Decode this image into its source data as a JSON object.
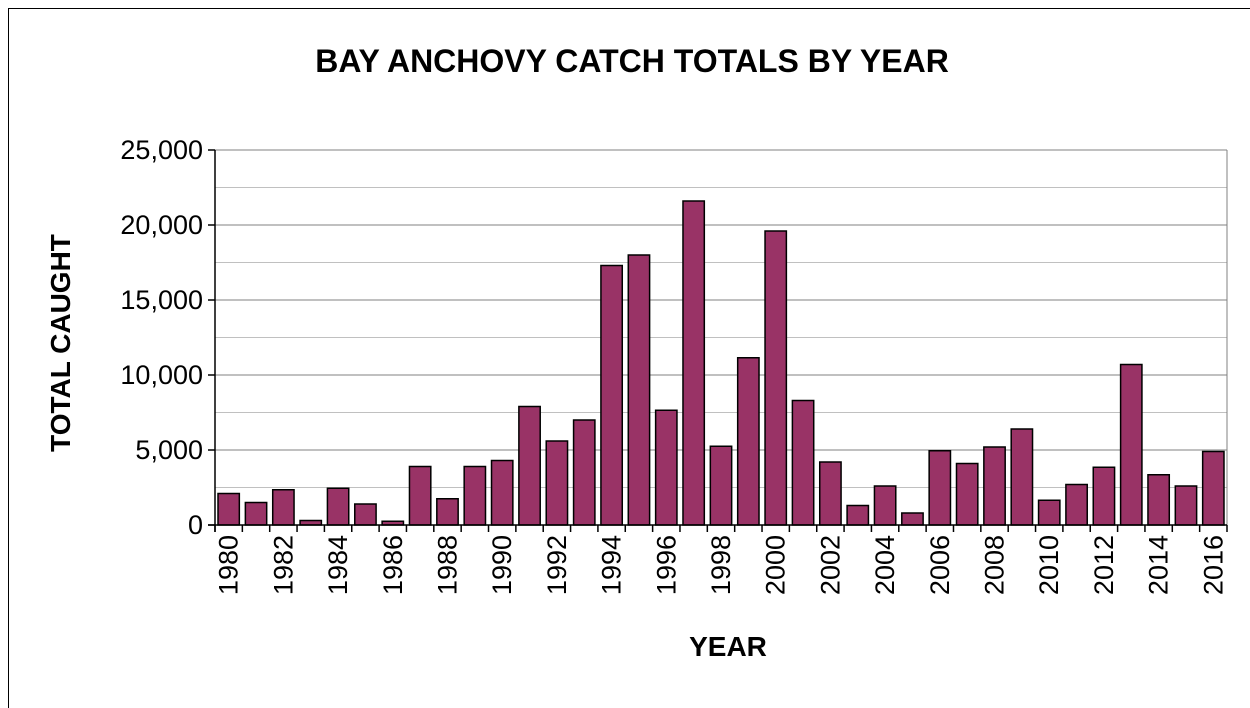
{
  "colors": {
    "bar": "#993366",
    "bar_stroke": "#000000",
    "grid": "#808080",
    "minor_grid": "#c0c0c0"
  },
  "chart_data": {
    "type": "bar",
    "title": "BAY ANCHOVY CATCH TOTALS BY YEAR",
    "xlabel": "YEAR",
    "ylabel": "TOTAL CAUGHT",
    "ylim": [
      0,
      25000
    ],
    "y_ticks": [
      "0",
      "5,000",
      "10,000",
      "15,000",
      "20,000",
      "25,000"
    ],
    "y_tick_values": [
      0,
      5000,
      10000,
      15000,
      20000,
      25000
    ],
    "grid": true,
    "legend": "none",
    "categories": [
      "1980",
      "1981",
      "1982",
      "1983",
      "1984",
      "1985",
      "1986",
      "1987",
      "1988",
      "1989",
      "1990",
      "1991",
      "1992",
      "1993",
      "1994",
      "1995",
      "1996",
      "1997",
      "1998",
      "1999",
      "2000",
      "2001",
      "2002",
      "2003",
      "2004",
      "2005",
      "2006",
      "2007",
      "2008",
      "2009",
      "2010",
      "2011",
      "2012",
      "2013",
      "2014",
      "2015",
      "2016"
    ],
    "x_tick_labels": [
      "1980",
      "",
      "1982",
      "",
      "1984",
      "",
      "1986",
      "",
      "1988",
      "",
      "1990",
      "",
      "1992",
      "",
      "1994",
      "",
      "1996",
      "",
      "1998",
      "",
      "2000",
      "",
      "2002",
      "",
      "2004",
      "",
      "2006",
      "",
      "2008",
      "",
      "2010",
      "",
      "2012",
      "",
      "2014",
      "",
      "2016"
    ],
    "values": [
      2100,
      1500,
      2350,
      300,
      2450,
      1400,
      250,
      3900,
      1750,
      3900,
      4300,
      7900,
      5600,
      7000,
      17300,
      18000,
      7650,
      21600,
      5250,
      11150,
      19600,
      8300,
      4200,
      1300,
      2600,
      800,
      4950,
      4100,
      5200,
      6400,
      1650,
      2700,
      3850,
      10700,
      3350,
      2600,
      4900
    ]
  }
}
